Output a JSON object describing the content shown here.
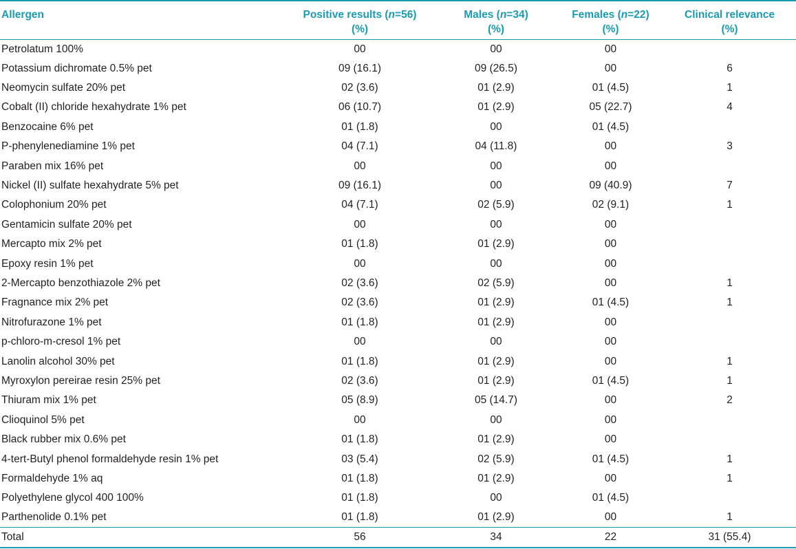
{
  "colors": {
    "accent": "#1a9bb0",
    "text": "#231f20"
  },
  "header": {
    "allergen": "Allergen",
    "positive_1": "Positive results (",
    "positive_n": "n",
    "positive_2": "=56)",
    "positive_sub": "(%)",
    "males_1": "Males (",
    "males_n": "n",
    "males_2": "=34)",
    "males_sub": "(%)",
    "females_1": "Females (",
    "females_n": "n",
    "females_2": "=22)",
    "females_sub": "(%)",
    "clinical": "Clinical relevance",
    "clinical_sub": "(%)"
  },
  "rows": [
    {
      "allergen": "Petrolatum 100%",
      "positive": "00",
      "males": "00",
      "females": "00",
      "clinical": ""
    },
    {
      "allergen": "Potassium dichromate 0.5% pet",
      "positive": "09 (16.1)",
      "males": "09 (26.5)",
      "females": "00",
      "clinical": "6"
    },
    {
      "allergen": "Neomycin sulfate 20% pet",
      "positive": "02 (3.6)",
      "males": "01 (2.9)",
      "females": "01 (4.5)",
      "clinical": "1"
    },
    {
      "allergen": "Cobalt (II) chloride hexahydrate 1% pet",
      "positive": "06 (10.7)",
      "males": "01 (2.9)",
      "females": "05 (22.7)",
      "clinical": "4"
    },
    {
      "allergen": "Benzocaine 6% pet",
      "positive": "01 (1.8)",
      "males": "00",
      "females": "01 (4.5)",
      "clinical": ""
    },
    {
      "allergen": "P-phenylenediamine 1% pet",
      "positive": "04 (7.1)",
      "males": "04 (11.8)",
      "females": "00",
      "clinical": "3"
    },
    {
      "allergen": "Paraben mix 16% pet",
      "positive": "00",
      "males": "00",
      "females": "00",
      "clinical": ""
    },
    {
      "allergen": "Nickel (II) sulfate hexahydrate 5% pet",
      "positive": "09 (16.1)",
      "males": "00",
      "females": "09 (40.9)",
      "clinical": "7"
    },
    {
      "allergen": "Colophonium 20% pet",
      "positive": "04 (7.1)",
      "males": "02 (5.9)",
      "females": "02 (9.1)",
      "clinical": "1"
    },
    {
      "allergen": "Gentamicin sulfate 20% pet",
      "positive": "00",
      "males": "00",
      "females": "00",
      "clinical": ""
    },
    {
      "allergen": "Mercapto mix 2% pet",
      "positive": "01 (1.8)",
      "males": "01 (2.9)",
      "females": "00",
      "clinical": ""
    },
    {
      "allergen": "Epoxy resin 1% pet",
      "positive": "00",
      "males": "00",
      "females": "00",
      "clinical": ""
    },
    {
      "allergen": "2-Mercapto benzothiazole 2% pet",
      "positive": "02 (3.6)",
      "males": "02 (5.9)",
      "females": "00",
      "clinical": "1"
    },
    {
      "allergen": "Fragnance mix 2% pet",
      "positive": "02 (3.6)",
      "males": "01 (2.9)",
      "females": "01 (4.5)",
      "clinical": "1"
    },
    {
      "allergen": "Nitrofurazone 1% pet",
      "positive": "01 (1.8)",
      "males": "01 (2.9)",
      "females": "00",
      "clinical": ""
    },
    {
      "allergen": "p-chloro-m-cresol 1% pet",
      "positive": "00",
      "males": "00",
      "females": "00",
      "clinical": ""
    },
    {
      "allergen": "Lanolin alcohol 30% pet",
      "positive": "01 (1.8)",
      "males": "01 (2.9)",
      "females": "00",
      "clinical": "1"
    },
    {
      "allergen": "Myroxylon pereirae resin 25% pet",
      "positive": "02 (3.6)",
      "males": "01 (2.9)",
      "females": "01 (4.5)",
      "clinical": "1"
    },
    {
      "allergen": "Thiuram mix 1% pet",
      "positive": "05 (8.9)",
      "males": "05 (14.7)",
      "females": "00",
      "clinical": "2"
    },
    {
      "allergen": "Clioquinol 5% pet",
      "positive": "00",
      "males": "00",
      "females": "00",
      "clinical": ""
    },
    {
      "allergen": "Black rubber mix 0.6% pet",
      "positive": "01 (1.8)",
      "males": "01 (2.9)",
      "females": "00",
      "clinical": ""
    },
    {
      "allergen": "4-tert-Butyl phenol formaldehyde resin 1% pet",
      "positive": "03 (5.4)",
      "males": "02 (5.9)",
      "females": "01 (4.5)",
      "clinical": "1"
    },
    {
      "allergen": "Formaldehyde 1% aq",
      "positive": "01 (1.8)",
      "males": "01 (2.9)",
      "females": "00",
      "clinical": "1"
    },
    {
      "allergen": "Polyethylene glycol 400 100%",
      "positive": "01 (1.8)",
      "males": "00",
      "females": "01 (4.5)",
      "clinical": ""
    },
    {
      "allergen": "Parthenolide 0.1% pet",
      "positive": "01 (1.8)",
      "males": "01 (2.9)",
      "females": "00",
      "clinical": "1"
    }
  ],
  "total": {
    "label": "Total",
    "positive": "56",
    "males": "34",
    "females": "22",
    "clinical": "31 (55.4)"
  }
}
